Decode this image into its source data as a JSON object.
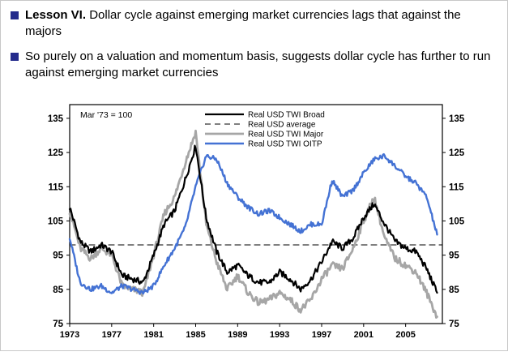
{
  "slide": {
    "bullet1_bold": "Lesson VI.",
    "bullet1_rest": " Dollar cycle against emerging market currencies lags that against the majors",
    "bullet2": "So purely on a valuation and momentum basis, suggests dollar cycle has further to run against emerging market currencies",
    "accent_color": "#242b8c"
  },
  "chart_data": {
    "type": "line",
    "annotation": "Mar '73 = 100",
    "x": [
      1973,
      1974,
      1975,
      1976,
      1977,
      1978,
      1979,
      1980,
      1981,
      1982,
      1983,
      1984,
      1985,
      1986,
      1987,
      1988,
      1989,
      1990,
      1991,
      1992,
      1993,
      1994,
      1995,
      1996,
      1997,
      1998,
      1999,
      2000,
      2001,
      2002,
      2003,
      2004,
      2005,
      2006,
      2007,
      2008
    ],
    "series": [
      {
        "name": "Real USD TWI Broad",
        "color": "#000000",
        "width": 2.2,
        "dash": null,
        "noise": 0.9,
        "seed": 1,
        "values": [
          109,
          99,
          96,
          98,
          96,
          89,
          88,
          87,
          95,
          104,
          108,
          117,
          127,
          106,
          96,
          90,
          92,
          89,
          87,
          87,
          90,
          88,
          85,
          88,
          93,
          99,
          97,
          100,
          106,
          110,
          104,
          99,
          97,
          96,
          91,
          84
        ]
      },
      {
        "name": "Real USD average",
        "color": "#000000",
        "width": 1.1,
        "dash": "7,5",
        "noise": 0,
        "seed": 0,
        "constant": 98
      },
      {
        "name": "Real USD TWI Major",
        "color": "#a6a6a6",
        "width": 2.8,
        "dash": null,
        "noise": 1.0,
        "seed": 2,
        "values": [
          108,
          97,
          94,
          97,
          95,
          86,
          85,
          84,
          95,
          107,
          112,
          122,
          131,
          104,
          93,
          85,
          89,
          84,
          81,
          82,
          84,
          82,
          79,
          82,
          88,
          92,
          91,
          97,
          105,
          112,
          100,
          94,
          92,
          90,
          84,
          77
        ]
      },
      {
        "name": "Real USD TWI OITP",
        "color": "#4472d4",
        "width": 2.4,
        "dash": null,
        "noise": 0.7,
        "seed": 3,
        "values": [
          100,
          87,
          85,
          86,
          84,
          86,
          85,
          84,
          86,
          92,
          97,
          103,
          115,
          124,
          123,
          116,
          112,
          109,
          107,
          108,
          106,
          104,
          102,
          104,
          104,
          117,
          112,
          114,
          119,
          123,
          124,
          121,
          118,
          116,
          112,
          101
        ]
      }
    ],
    "draw_order": [
      1,
      2,
      3,
      0
    ],
    "ylim": [
      75,
      135
    ],
    "yticks": [
      75,
      85,
      95,
      105,
      115,
      125,
      135
    ],
    "xticks": [
      1973,
      1977,
      1981,
      1985,
      1989,
      1993,
      1997,
      2001,
      2005
    ],
    "legend_position": "top-center-inside",
    "grid": "off"
  }
}
